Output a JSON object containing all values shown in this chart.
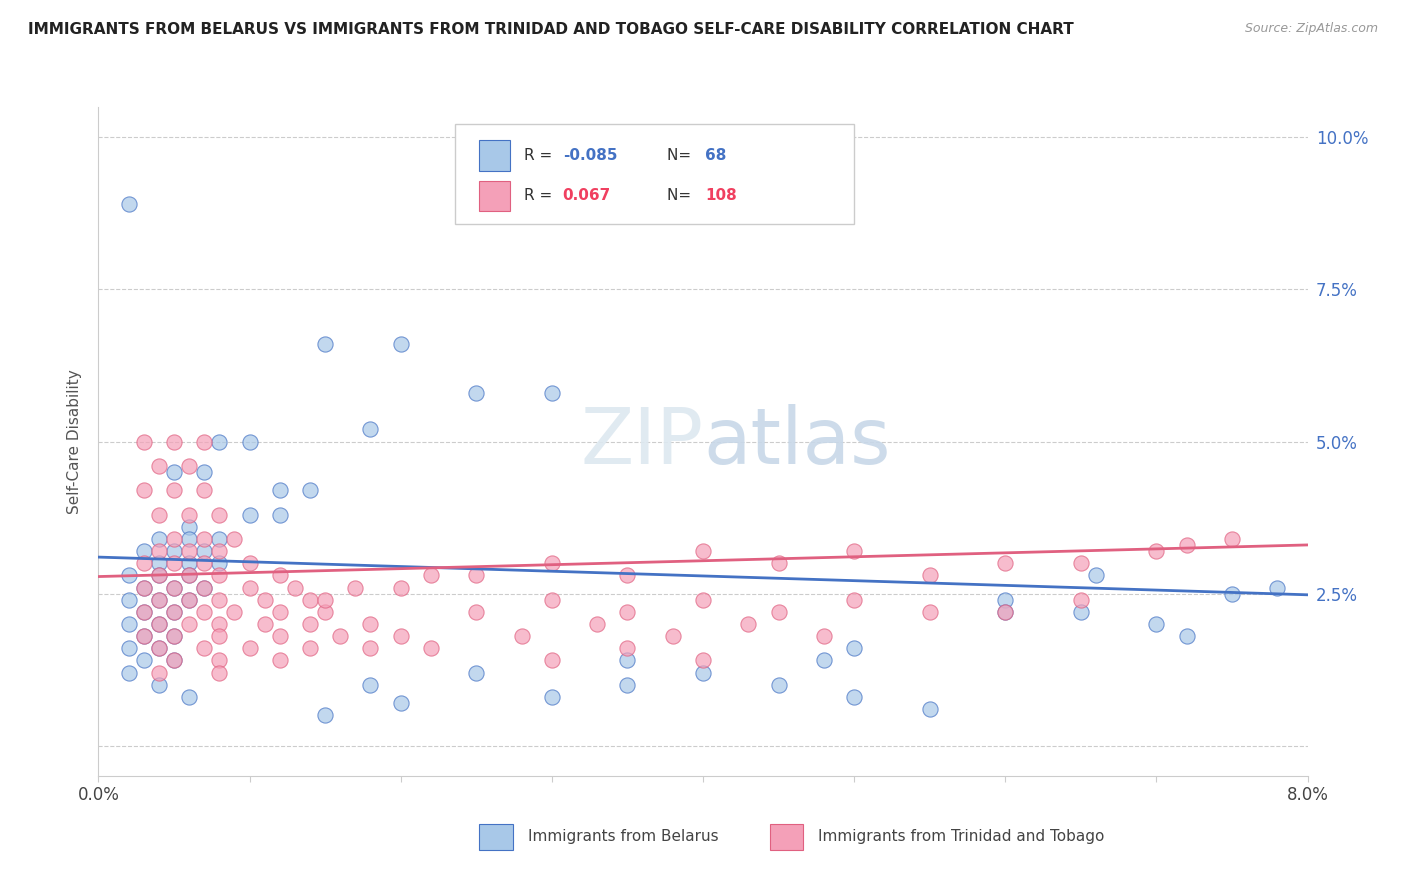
{
  "title": "IMMIGRANTS FROM BELARUS VS IMMIGRANTS FROM TRINIDAD AND TOBAGO SELF-CARE DISABILITY CORRELATION CHART",
  "source": "Source: ZipAtlas.com",
  "ylabel": "Self-Care Disability",
  "xlim": [
    0.0,
    0.08
  ],
  "ylim": [
    -0.005,
    0.105
  ],
  "ytick_positions": [
    0.0,
    0.025,
    0.05,
    0.075,
    0.1
  ],
  "ytick_labels": [
    "",
    "2.5%",
    "5.0%",
    "7.5%",
    "10.0%"
  ],
  "xtick_positions": [
    0.0,
    0.01,
    0.02,
    0.03,
    0.04,
    0.05,
    0.06,
    0.07,
    0.08
  ],
  "xtick_labels": [
    "0.0%",
    "",
    "",
    "",
    "",
    "",
    "",
    "",
    "8.0%"
  ],
  "color_belarus": "#a8c8e8",
  "color_tt": "#f4a0b8",
  "trendline_belarus_color": "#4472c4",
  "trendline_tt_color": "#e06080",
  "watermark_color": "#dde8f0",
  "bel_trend_x0": 0.0,
  "bel_trend_y0": 0.031,
  "bel_trend_x1": 0.08,
  "bel_trend_y1": 0.0248,
  "tt_trend_x0": 0.0,
  "tt_trend_y0": 0.0278,
  "tt_trend_x1": 0.08,
  "tt_trend_y1": 0.033,
  "belarus_points": [
    [
      0.002,
      0.089
    ],
    [
      0.015,
      0.066
    ],
    [
      0.02,
      0.066
    ],
    [
      0.025,
      0.058
    ],
    [
      0.03,
      0.058
    ],
    [
      0.018,
      0.052
    ],
    [
      0.008,
      0.05
    ],
    [
      0.01,
      0.05
    ],
    [
      0.005,
      0.045
    ],
    [
      0.007,
      0.045
    ],
    [
      0.012,
      0.042
    ],
    [
      0.014,
      0.042
    ],
    [
      0.01,
      0.038
    ],
    [
      0.012,
      0.038
    ],
    [
      0.006,
      0.036
    ],
    [
      0.004,
      0.034
    ],
    [
      0.006,
      0.034
    ],
    [
      0.008,
      0.034
    ],
    [
      0.003,
      0.032
    ],
    [
      0.005,
      0.032
    ],
    [
      0.007,
      0.032
    ],
    [
      0.004,
      0.03
    ],
    [
      0.006,
      0.03
    ],
    [
      0.008,
      0.03
    ],
    [
      0.002,
      0.028
    ],
    [
      0.004,
      0.028
    ],
    [
      0.006,
      0.028
    ],
    [
      0.003,
      0.026
    ],
    [
      0.005,
      0.026
    ],
    [
      0.007,
      0.026
    ],
    [
      0.002,
      0.024
    ],
    [
      0.004,
      0.024
    ],
    [
      0.006,
      0.024
    ],
    [
      0.003,
      0.022
    ],
    [
      0.005,
      0.022
    ],
    [
      0.002,
      0.02
    ],
    [
      0.004,
      0.02
    ],
    [
      0.003,
      0.018
    ],
    [
      0.005,
      0.018
    ],
    [
      0.002,
      0.016
    ],
    [
      0.004,
      0.016
    ],
    [
      0.003,
      0.014
    ],
    [
      0.005,
      0.014
    ],
    [
      0.002,
      0.012
    ],
    [
      0.004,
      0.01
    ],
    [
      0.006,
      0.008
    ],
    [
      0.015,
      0.005
    ],
    [
      0.02,
      0.007
    ],
    [
      0.03,
      0.008
    ],
    [
      0.035,
      0.01
    ],
    [
      0.04,
      0.012
    ],
    [
      0.045,
      0.01
    ],
    [
      0.05,
      0.008
    ],
    [
      0.055,
      0.006
    ],
    [
      0.06,
      0.024
    ],
    [
      0.065,
      0.022
    ],
    [
      0.066,
      0.028
    ],
    [
      0.06,
      0.022
    ],
    [
      0.048,
      0.014
    ],
    [
      0.07,
      0.02
    ],
    [
      0.072,
      0.018
    ],
    [
      0.075,
      0.025
    ],
    [
      0.078,
      0.026
    ],
    [
      0.05,
      0.016
    ],
    [
      0.035,
      0.014
    ],
    [
      0.025,
      0.012
    ],
    [
      0.018,
      0.01
    ]
  ],
  "tt_points": [
    [
      0.003,
      0.05
    ],
    [
      0.005,
      0.05
    ],
    [
      0.007,
      0.05
    ],
    [
      0.004,
      0.046
    ],
    [
      0.006,
      0.046
    ],
    [
      0.003,
      0.042
    ],
    [
      0.005,
      0.042
    ],
    [
      0.007,
      0.042
    ],
    [
      0.004,
      0.038
    ],
    [
      0.006,
      0.038
    ],
    [
      0.008,
      0.038
    ],
    [
      0.005,
      0.034
    ],
    [
      0.007,
      0.034
    ],
    [
      0.009,
      0.034
    ],
    [
      0.004,
      0.032
    ],
    [
      0.006,
      0.032
    ],
    [
      0.008,
      0.032
    ],
    [
      0.003,
      0.03
    ],
    [
      0.005,
      0.03
    ],
    [
      0.007,
      0.03
    ],
    [
      0.01,
      0.03
    ],
    [
      0.004,
      0.028
    ],
    [
      0.006,
      0.028
    ],
    [
      0.008,
      0.028
    ],
    [
      0.012,
      0.028
    ],
    [
      0.003,
      0.026
    ],
    [
      0.005,
      0.026
    ],
    [
      0.007,
      0.026
    ],
    [
      0.01,
      0.026
    ],
    [
      0.013,
      0.026
    ],
    [
      0.004,
      0.024
    ],
    [
      0.006,
      0.024
    ],
    [
      0.008,
      0.024
    ],
    [
      0.011,
      0.024
    ],
    [
      0.014,
      0.024
    ],
    [
      0.003,
      0.022
    ],
    [
      0.005,
      0.022
    ],
    [
      0.007,
      0.022
    ],
    [
      0.009,
      0.022
    ],
    [
      0.012,
      0.022
    ],
    [
      0.015,
      0.022
    ],
    [
      0.004,
      0.02
    ],
    [
      0.006,
      0.02
    ],
    [
      0.008,
      0.02
    ],
    [
      0.011,
      0.02
    ],
    [
      0.014,
      0.02
    ],
    [
      0.018,
      0.02
    ],
    [
      0.003,
      0.018
    ],
    [
      0.005,
      0.018
    ],
    [
      0.008,
      0.018
    ],
    [
      0.012,
      0.018
    ],
    [
      0.016,
      0.018
    ],
    [
      0.02,
      0.018
    ],
    [
      0.004,
      0.016
    ],
    [
      0.007,
      0.016
    ],
    [
      0.01,
      0.016
    ],
    [
      0.014,
      0.016
    ],
    [
      0.018,
      0.016
    ],
    [
      0.022,
      0.016
    ],
    [
      0.005,
      0.014
    ],
    [
      0.008,
      0.014
    ],
    [
      0.012,
      0.014
    ],
    [
      0.004,
      0.012
    ],
    [
      0.008,
      0.012
    ],
    [
      0.025,
      0.028
    ],
    [
      0.03,
      0.03
    ],
    [
      0.035,
      0.028
    ],
    [
      0.04,
      0.032
    ],
    [
      0.045,
      0.03
    ],
    [
      0.05,
      0.032
    ],
    [
      0.055,
      0.028
    ],
    [
      0.06,
      0.03
    ],
    [
      0.065,
      0.03
    ],
    [
      0.07,
      0.032
    ],
    [
      0.072,
      0.033
    ],
    [
      0.075,
      0.034
    ],
    [
      0.025,
      0.022
    ],
    [
      0.03,
      0.024
    ],
    [
      0.035,
      0.022
    ],
    [
      0.04,
      0.024
    ],
    [
      0.045,
      0.022
    ],
    [
      0.05,
      0.024
    ],
    [
      0.055,
      0.022
    ],
    [
      0.028,
      0.018
    ],
    [
      0.033,
      0.02
    ],
    [
      0.038,
      0.018
    ],
    [
      0.043,
      0.02
    ],
    [
      0.048,
      0.018
    ],
    [
      0.03,
      0.014
    ],
    [
      0.035,
      0.016
    ],
    [
      0.04,
      0.014
    ],
    [
      0.06,
      0.022
    ],
    [
      0.065,
      0.024
    ],
    [
      0.02,
      0.026
    ],
    [
      0.022,
      0.028
    ],
    [
      0.015,
      0.024
    ],
    [
      0.017,
      0.026
    ]
  ]
}
